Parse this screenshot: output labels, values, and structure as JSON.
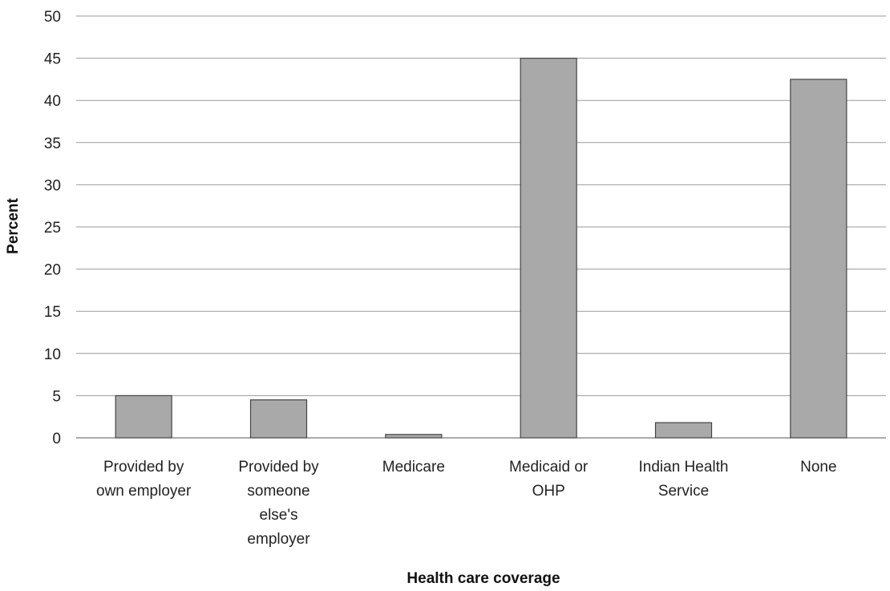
{
  "chart_data": {
    "type": "bar",
    "categories": [
      [
        "Provided by",
        "own employer"
      ],
      [
        "Provided by",
        "someone",
        "else's",
        "employer"
      ],
      [
        "Medicare"
      ],
      [
        "Medicaid or",
        "OHP"
      ],
      [
        "Indian Health",
        "Service"
      ],
      [
        "None"
      ]
    ],
    "values": [
      5,
      4.5,
      0.4,
      45,
      1.8,
      42.5
    ],
    "xlabel": "Health care coverage",
    "ylabel": "Percent",
    "ylim": [
      0,
      50
    ],
    "yticks": [
      0,
      5,
      10,
      15,
      20,
      25,
      30,
      35,
      40,
      45,
      50
    ],
    "grid": true,
    "bar_color": "#a9a9a9"
  }
}
